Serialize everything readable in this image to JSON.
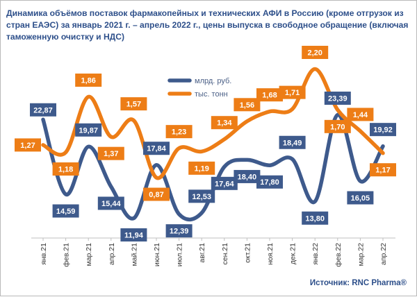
{
  "title": "Динамика объёмов поставок фармакопейных и технических АФИ в Россию (кроме отгрузок из стран ЕАЭС) за январь 2021 г. – апрель 2022 г., цены выпуска в свободное обращение (включая таможенную очистку и НДС)",
  "source": "Источник: RNC Pharma®",
  "colors": {
    "rub": "#3e5a8c",
    "tonn": "#ed7d16",
    "title": "#2d4f8a"
  },
  "chart_data": {
    "type": "line",
    "title": "Динамика объёмов поставок фармакопейных и технических АФИ в Россию (кроме отгрузок из стран ЕАЭС) за январь 2021 г. – апрель 2022 г., цены выпуска в свободное обращение (включая таможенную очистку и НДС)",
    "categories": [
      "янв.21",
      "фев.21",
      "мар.21",
      "апр.21",
      "май.21",
      "июн.21",
      "июл.21",
      "авг.21",
      "сен.21",
      "окт.21",
      "ноя.21",
      "дек.21",
      "янв.22",
      "фев.22",
      "мар.22",
      "апр.22"
    ],
    "series": [
      {
        "name": "млрд. руб.",
        "color": "#3e5a8c",
        "axis": "left",
        "values": [
          22.87,
          14.59,
          19.87,
          15.44,
          11.94,
          17.84,
          12.39,
          12.53,
          17.64,
          18.4,
          17.8,
          18.49,
          13.8,
          23.39,
          16.05,
          19.92
        ],
        "labels": [
          "22,87",
          "14,59",
          "19,87",
          "15,44",
          "11,94",
          "17,84",
          "12,39",
          "12,53",
          "17,64",
          "18,40",
          "17,80",
          "18,49",
          "13,80",
          "23,39",
          "16,05",
          "19,92"
        ]
      },
      {
        "name": "тыс. тонн",
        "color": "#ed7d16",
        "axis": "right",
        "values": [
          1.27,
          1.18,
          1.86,
          1.37,
          1.57,
          0.87,
          1.23,
          1.19,
          1.34,
          1.56,
          1.68,
          1.71,
          2.2,
          1.7,
          1.44,
          1.17
        ],
        "labels": [
          "1,27",
          "1,18",
          "1,86",
          "1,37",
          "1,57",
          "0,87",
          "1,23",
          "1,19",
          "1,34",
          "1,56",
          "1,68",
          "1,71",
          "2,20",
          "1,70",
          "1,44",
          "1,17"
        ]
      }
    ],
    "legend": "top-center",
    "grid": false
  }
}
